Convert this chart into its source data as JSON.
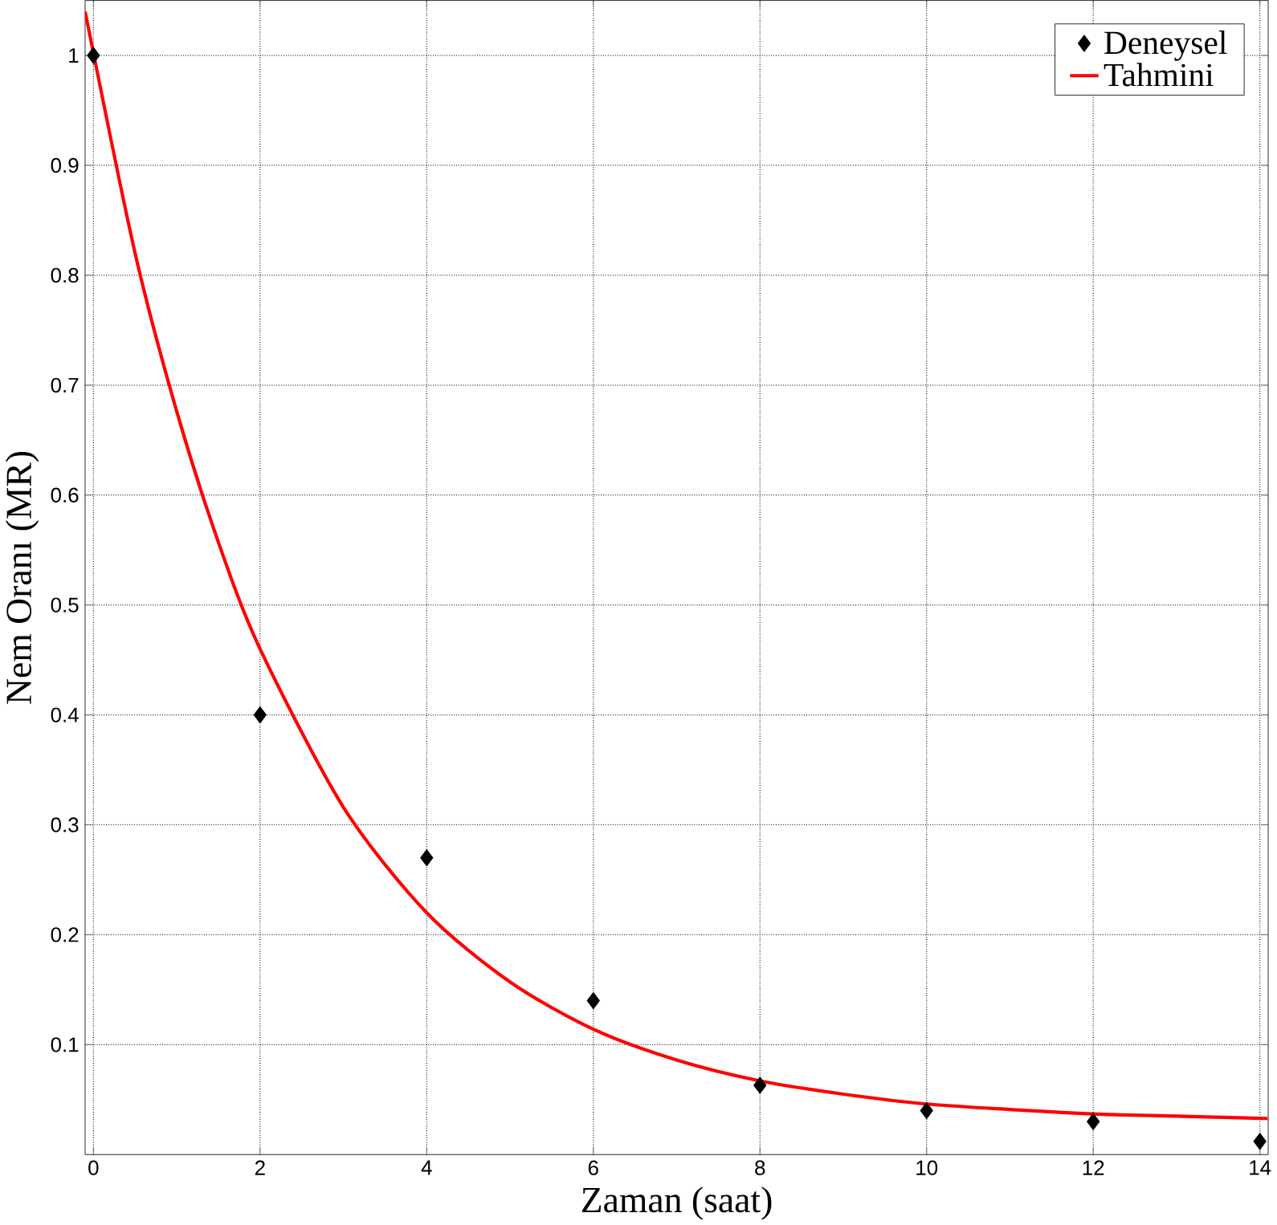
{
  "chart_data": {
    "type": "line",
    "xlabel": "Zaman (saat)",
    "ylabel": "Nem Oranı (MR)",
    "xlim": [
      -0.1,
      14.1
    ],
    "ylim": [
      0,
      1.05
    ],
    "xticks": [
      0,
      2,
      4,
      6,
      8,
      10,
      12,
      14
    ],
    "yticks": [
      0.1,
      0.2,
      0.3,
      0.4,
      0.5,
      0.6,
      0.7,
      0.8,
      0.9,
      1
    ],
    "grid": true,
    "legend": "top right",
    "series": [
      {
        "name": "Deneysel",
        "type": "scatter",
        "marker": "diamond",
        "color": "#000000",
        "x": [
          0,
          2,
          4,
          6,
          8,
          10,
          12,
          14
        ],
        "values": [
          1,
          0.4,
          0.27,
          0.14,
          0.063,
          0.04,
          0.03,
          0.012
        ]
      },
      {
        "name": "Tahmini",
        "color": "#ff0000",
        "x": [
          -0.1,
          0.5,
          1,
          1.5,
          2,
          3,
          4,
          5,
          6,
          7,
          8,
          9,
          10,
          11,
          12,
          13,
          14,
          14.1
        ],
        "values": [
          1.04,
          0.82,
          0.676,
          0.557,
          0.46,
          0.316,
          0.22,
          0.157,
          0.114,
          0.086,
          0.067,
          0.055,
          0.046,
          0.041,
          0.037,
          0.035,
          0.033,
          0.033
        ]
      }
    ]
  }
}
